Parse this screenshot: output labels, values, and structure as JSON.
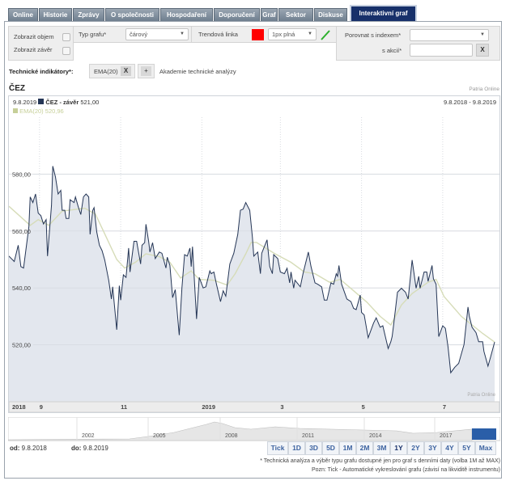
{
  "tabs": [
    "Online",
    "Historie",
    "Zprávy",
    "O společnosti",
    "Hospodaření",
    "Doporučení",
    "Graf",
    "Sektor",
    "Diskuse",
    "Interaktivní graf"
  ],
  "active_tab": "Interaktivní graf",
  "controls": {
    "show_volume": "Zobrazit objem",
    "show_close": "Zobrazit závěr",
    "chart_type_label": "Typ grafu*",
    "chart_type_value": "čárový",
    "trend_label": "Trendová linka",
    "trend_color": "#ff0000",
    "trend_style": "1px plná",
    "compare_index_label": "Porovnat s indexem*",
    "compare_index_value": "",
    "compare_stock_label": "s akcií*",
    "compare_stock_value": "",
    "clear": "X"
  },
  "indicators": {
    "label": "Technické indikátory*:",
    "items": [
      "EMA(20)"
    ],
    "remove": "X",
    "add": "+",
    "academy_link": "Akademie technické analýzy"
  },
  "chart": {
    "title": "ČEZ",
    "source": "Patria Online",
    "watermark": "Patria Online",
    "header_date": "9.8.2019",
    "series_label": "ČEZ - závěr",
    "series_value": "521,00",
    "ema_label": "EMA(20)",
    "ema_value": "520,96",
    "range": "9.8.2018 - 9.8.2019",
    "colors": {
      "line": "#253656",
      "fill": "#e3e7ee",
      "ema": "#d6dcb8"
    }
  },
  "chart_data": {
    "type": "line",
    "title": "ČEZ",
    "x_range": [
      "2018-08-09",
      "2019-08-09"
    ],
    "ylim": [
      500,
      600
    ],
    "y_ticks": [
      "580,00",
      "560,00",
      "540,00",
      "520,00"
    ],
    "y_tick_values": [
      580,
      560,
      540,
      520
    ],
    "x_ticks": [
      {
        "label": "2018",
        "date": "2018-08-09"
      },
      {
        "label": "9",
        "date": "2018-09-01"
      },
      {
        "label": "11",
        "date": "2018-11-01"
      },
      {
        "label": "2019",
        "date": "2019-01-01"
      },
      {
        "label": "3",
        "date": "2019-03-01"
      },
      {
        "label": "5",
        "date": "2019-05-01"
      },
      {
        "label": "7",
        "date": "2019-07-01"
      }
    ],
    "grid": true,
    "series": [
      {
        "name": "ČEZ - závěr",
        "points": [
          [
            "2018-08-09",
            551.2
          ],
          [
            "2018-08-13",
            549.3
          ],
          [
            "2018-08-16",
            555
          ],
          [
            "2018-08-18",
            547.5
          ],
          [
            "2018-08-20",
            547
          ],
          [
            "2018-08-24",
            561.6
          ],
          [
            "2018-08-25",
            572
          ],
          [
            "2018-08-27",
            570
          ],
          [
            "2018-08-29",
            573
          ],
          [
            "2018-08-31",
            566.3
          ],
          [
            "2018-09-02",
            565.4
          ],
          [
            "2018-09-04",
            562.5
          ],
          [
            "2018-09-06",
            564
          ],
          [
            "2018-09-07",
            551.2
          ],
          [
            "2018-09-10",
            569
          ],
          [
            "2018-09-11",
            582.8
          ],
          [
            "2018-09-13",
            579
          ],
          [
            "2018-09-15",
            573
          ],
          [
            "2018-09-17",
            574.3
          ],
          [
            "2018-09-18",
            567.3
          ],
          [
            "2018-09-20",
            567.3
          ],
          [
            "2018-09-21",
            564.4
          ],
          [
            "2018-09-23",
            564.4
          ],
          [
            "2018-09-24",
            571
          ],
          [
            "2018-09-27",
            570
          ],
          [
            "2018-09-28",
            572
          ],
          [
            "2018-09-30",
            568.7
          ],
          [
            "2018-10-02",
            565.8
          ],
          [
            "2018-10-04",
            572
          ],
          [
            "2018-10-06",
            573
          ],
          [
            "2018-10-08",
            572
          ],
          [
            "2018-10-09",
            558.8
          ],
          [
            "2018-10-11",
            567.3
          ],
          [
            "2018-10-12",
            568.2
          ],
          [
            "2018-10-14",
            559.7
          ],
          [
            "2018-10-16",
            555
          ],
          [
            "2018-10-18",
            553.1
          ],
          [
            "2018-10-20",
            549.8
          ],
          [
            "2018-10-23",
            542.7
          ],
          [
            "2018-10-25",
            536.1
          ],
          [
            "2018-10-26",
            540.4
          ],
          [
            "2018-10-29",
            525.3
          ],
          [
            "2018-10-31",
            540.8
          ],
          [
            "2018-11-01",
            535.7
          ],
          [
            "2018-11-03",
            544.6
          ],
          [
            "2018-11-05",
            543.7
          ],
          [
            "2018-11-07",
            554
          ],
          [
            "2018-11-08",
            545.6
          ],
          [
            "2018-11-11",
            556.4
          ],
          [
            "2018-11-13",
            556.4
          ],
          [
            "2018-11-16",
            548.4
          ],
          [
            "2018-11-17",
            555
          ],
          [
            "2018-11-19",
            555.9
          ],
          [
            "2018-11-20",
            562.4
          ],
          [
            "2018-11-22",
            556.4
          ],
          [
            "2018-11-23",
            552.6
          ],
          [
            "2018-11-25",
            555.9
          ],
          [
            "2018-11-27",
            550.3
          ],
          [
            "2018-11-30",
            552.6
          ],
          [
            "2018-12-02",
            552.2
          ],
          [
            "2018-12-05",
            547
          ],
          [
            "2018-12-06",
            550.8
          ],
          [
            "2018-12-08",
            547.9
          ],
          [
            "2018-12-10",
            536.6
          ],
          [
            "2018-12-12",
            539.4
          ],
          [
            "2018-12-15",
            523.4
          ],
          [
            "2018-12-17",
            539.9
          ],
          [
            "2018-12-19",
            551.7
          ],
          [
            "2018-12-21",
            551.2
          ],
          [
            "2018-12-23",
            554
          ],
          [
            "2018-12-24",
            547.5
          ],
          [
            "2018-12-25",
            554.5
          ],
          [
            "2018-12-28",
            529.1
          ],
          [
            "2018-12-30",
            543.7
          ],
          [
            "2019-01-02",
            540
          ],
          [
            "2019-01-04",
            540.4
          ],
          [
            "2019-01-07",
            546
          ],
          [
            "2019-01-08",
            545
          ],
          [
            "2019-01-10",
            545.6
          ],
          [
            "2019-01-12",
            541.3
          ],
          [
            "2019-01-15",
            535.2
          ],
          [
            "2019-01-17",
            539
          ],
          [
            "2019-01-19",
            537.1
          ],
          [
            "2019-01-22",
            548.4
          ],
          [
            "2019-01-25",
            552.2
          ],
          [
            "2019-01-28",
            558.8
          ],
          [
            "2019-01-30",
            567.3
          ],
          [
            "2019-02-01",
            567.7
          ],
          [
            "2019-02-03",
            570
          ],
          [
            "2019-02-06",
            567.3
          ],
          [
            "2019-02-08",
            557.8
          ],
          [
            "2019-02-09",
            551.2
          ],
          [
            "2019-02-12",
            552.6
          ],
          [
            "2019-02-14",
            545
          ],
          [
            "2019-02-15",
            552.2
          ],
          [
            "2019-02-19",
            556.9
          ],
          [
            "2019-02-21",
            547.5
          ],
          [
            "2019-02-23",
            545
          ],
          [
            "2019-02-24",
            551.7
          ],
          [
            "2019-02-27",
            550.3
          ],
          [
            "2019-03-01",
            545.6
          ],
          [
            "2019-03-04",
            545
          ],
          [
            "2019-03-06",
            546.9
          ],
          [
            "2019-03-08",
            541.8
          ],
          [
            "2019-03-09",
            545.6
          ],
          [
            "2019-03-11",
            539.9
          ],
          [
            "2019-03-12",
            542.7
          ],
          [
            "2019-03-16",
            540.4
          ],
          [
            "2019-03-18",
            545
          ],
          [
            "2019-03-22",
            552.6
          ],
          [
            "2019-03-24",
            547.5
          ],
          [
            "2019-03-27",
            541.8
          ],
          [
            "2019-03-29",
            541.3
          ],
          [
            "2019-04-01",
            540.4
          ],
          [
            "2019-04-03",
            535.7
          ],
          [
            "2019-04-05",
            535.7
          ],
          [
            "2019-04-08",
            541.8
          ],
          [
            "2019-04-10",
            541.3
          ],
          [
            "2019-04-12",
            545
          ],
          [
            "2019-04-13",
            544.1
          ],
          [
            "2019-04-14",
            547.9
          ],
          [
            "2019-04-16",
            541.3
          ],
          [
            "2019-04-20",
            536.1
          ],
          [
            "2019-04-23",
            535.2
          ],
          [
            "2019-04-25",
            532.8
          ],
          [
            "2019-04-27",
            532.4
          ],
          [
            "2019-04-30",
            537.5
          ],
          [
            "2019-05-01",
            531.4
          ],
          [
            "2019-05-03",
            530.5
          ],
          [
            "2019-05-06",
            522.5
          ],
          [
            "2019-05-10",
            527.6
          ],
          [
            "2019-05-12",
            529.5
          ],
          [
            "2019-05-15",
            526.2
          ],
          [
            "2019-05-17",
            526.7
          ],
          [
            "2019-05-21",
            518.7
          ],
          [
            "2019-05-23",
            521.1
          ],
          [
            "2019-05-24",
            522.9
          ],
          [
            "2019-05-25",
            526.7
          ],
          [
            "2019-05-28",
            538.5
          ],
          [
            "2019-05-31",
            539.9
          ],
          [
            "2019-06-03",
            538.5
          ],
          [
            "2019-06-05",
            536.1
          ],
          [
            "2019-06-08",
            549.8
          ],
          [
            "2019-06-11",
            539.9
          ],
          [
            "2019-06-13",
            544.1
          ],
          [
            "2019-06-14",
            539.9
          ],
          [
            "2019-06-17",
            545.6
          ],
          [
            "2019-06-19",
            545.6
          ],
          [
            "2019-06-20",
            542.3
          ],
          [
            "2019-06-23",
            547.9
          ],
          [
            "2019-06-24",
            543.2
          ],
          [
            "2019-06-26",
            541.3
          ],
          [
            "2019-06-28",
            522.9
          ],
          [
            "2019-07-01",
            526.7
          ],
          [
            "2019-07-03",
            525.8
          ],
          [
            "2019-07-05",
            519.2
          ],
          [
            "2019-07-07",
            510.2
          ],
          [
            "2019-07-10",
            512.1
          ],
          [
            "2019-07-13",
            513.5
          ],
          [
            "2019-07-17",
            520.1
          ],
          [
            "2019-07-20",
            533.3
          ],
          [
            "2019-07-21",
            530
          ],
          [
            "2019-07-23",
            526.2
          ],
          [
            "2019-07-26",
            524.3
          ],
          [
            "2019-07-28",
            521.1
          ],
          [
            "2019-07-31",
            521.1
          ],
          [
            "2019-08-01",
            517.7
          ],
          [
            "2019-08-04",
            512.5
          ],
          [
            "2019-08-06",
            515.8
          ],
          [
            "2019-08-09",
            521.0
          ]
        ]
      },
      {
        "name": "EMA(20)",
        "points": [
          [
            "2018-08-09",
            568.7
          ],
          [
            "2018-08-25",
            562
          ],
          [
            "2018-08-31",
            564
          ],
          [
            "2018-09-08",
            562
          ],
          [
            "2018-09-18",
            567
          ],
          [
            "2018-10-05",
            568
          ],
          [
            "2018-10-13",
            566
          ],
          [
            "2018-10-21",
            558
          ],
          [
            "2018-10-29",
            550
          ],
          [
            "2018-11-04",
            547
          ],
          [
            "2018-11-12",
            549
          ],
          [
            "2018-11-20",
            552
          ],
          [
            "2018-11-30",
            551
          ],
          [
            "2018-12-08",
            549
          ],
          [
            "2018-12-16",
            543.5
          ],
          [
            "2018-12-24",
            546
          ],
          [
            "2018-12-30",
            543
          ],
          [
            "2019-01-10",
            542.7
          ],
          [
            "2019-01-20",
            541
          ],
          [
            "2019-01-26",
            545
          ],
          [
            "2019-02-03",
            552
          ],
          [
            "2019-02-07",
            556
          ],
          [
            "2019-02-11",
            556
          ],
          [
            "2019-02-25",
            552
          ],
          [
            "2019-03-09",
            549
          ],
          [
            "2019-03-19",
            545.6
          ],
          [
            "2019-03-27",
            545
          ],
          [
            "2019-04-07",
            542
          ],
          [
            "2019-04-15",
            543
          ],
          [
            "2019-04-25",
            539
          ],
          [
            "2019-05-05",
            535
          ],
          [
            "2019-05-15",
            530
          ],
          [
            "2019-05-23",
            527
          ],
          [
            "2019-05-31",
            534
          ],
          [
            "2019-06-08",
            538
          ],
          [
            "2019-06-20",
            542
          ],
          [
            "2019-06-26",
            543
          ],
          [
            "2019-07-02",
            537
          ],
          [
            "2019-07-15",
            530
          ],
          [
            "2019-07-23",
            527
          ],
          [
            "2019-07-31",
            524
          ],
          [
            "2019-08-09",
            520.96
          ]
        ]
      }
    ]
  },
  "navigator": {
    "years": [
      "2002",
      "2005",
      "2008",
      "2011",
      "2014",
      "2017"
    ],
    "selection_color": "#2a5ea8"
  },
  "range": {
    "from_label": "od:",
    "from": "9.8.2018",
    "to_label": "do:",
    "to": "9.8.2019",
    "buttons": [
      "Tick",
      "1D",
      "3D",
      "5D",
      "1M",
      "2M",
      "3M",
      "1Y",
      "2Y",
      "3Y",
      "4Y",
      "5Y",
      "Max"
    ],
    "selected": "1Y"
  },
  "notes": [
    "* Technická analýza a výběr typu grafu dostupné jen pro graf s denními daty (volba 1M až MAX)",
    "Pozn: Tick - Automatické vykreslování grafu (závisí na likviditě instrumentu)"
  ]
}
